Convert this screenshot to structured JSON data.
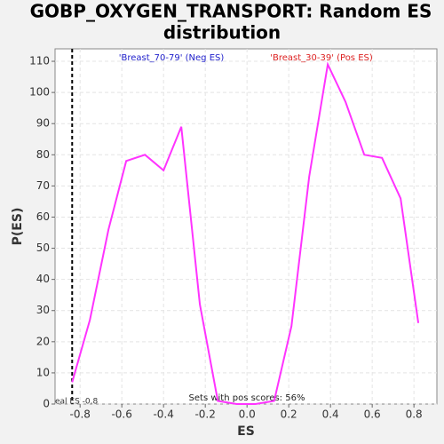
{
  "chart_data": {
    "type": "line",
    "title": [
      "GOBP_OXYGEN_TRANSPORT: Random ES",
      "distribution"
    ],
    "x_label": "ES",
    "y_label": "P(ES)",
    "x": [
      -0.838,
      -0.753,
      -0.664,
      -0.579,
      -0.489,
      -0.4,
      -0.315,
      -0.226,
      -0.14,
      -0.05,
      0.04,
      0.13,
      0.213,
      0.298,
      0.387,
      0.472,
      0.562,
      0.647,
      0.736,
      0.821
    ],
    "series": [
      {
        "name": "P(ES)",
        "color": "#ff33ff",
        "values": [
          7,
          27,
          56,
          78,
          80,
          75,
          89,
          32,
          1,
          0,
          0,
          1,
          25,
          73,
          109,
          97,
          80,
          79,
          66,
          26
        ]
      }
    ],
    "xlim": [
      -0.92,
      0.91
    ],
    "ylim": [
      0,
      114
    ],
    "xticks": [
      -0.8,
      -0.6,
      -0.4,
      -0.2,
      {
        "value": 0,
        "label": "0.0"
      },
      0.2,
      0.4,
      0.6,
      0.8
    ],
    "yticks": [
      0,
      10,
      20,
      30,
      40,
      50,
      60,
      70,
      80,
      90,
      100,
      110
    ],
    "grid": true,
    "real_es": {
      "value": -0.838,
      "label": "eal ES -0.8"
    },
    "neg_label": {
      "text": "'Breast_70-79' (Neg ES)",
      "color": "#2222cc"
    },
    "pos_label": {
      "text": "'Breast_30-39' (Pos ES)",
      "color": "#dd2222"
    },
    "footnote": "Sets with pos scores: 56%"
  }
}
